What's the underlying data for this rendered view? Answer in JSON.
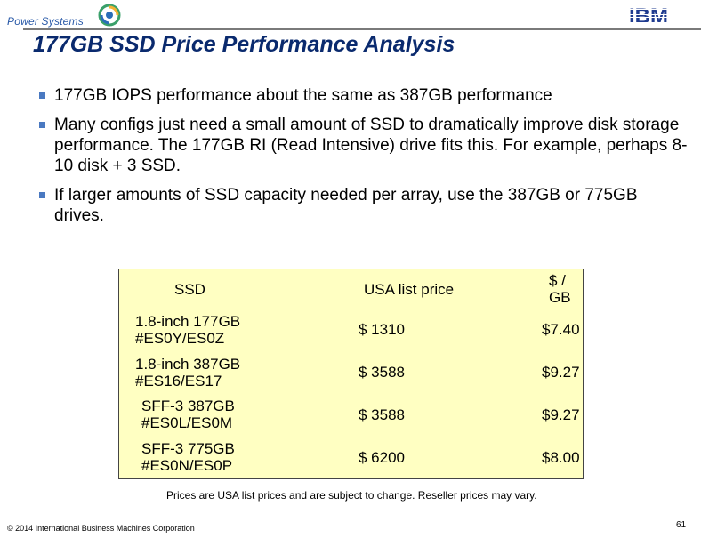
{
  "header": {
    "brand_text": "Power Systems",
    "ibm_logo_text": "IBM"
  },
  "title": "177GB SSD Price Performance Analysis",
  "bullets": [
    "177GB IOPS performance about the same as 387GB performance",
    "Many configs just need a small amount of SSD to dramatically improve disk storage performance.  The 177GB RI (Read Intensive) drive fits this.    For example, perhaps 8-10 disk + 3 SSD.",
    "If larger amounts of SSD capacity needed per array, use the 387GB or 775GB drives."
  ],
  "table": {
    "headers": [
      "SSD",
      "USA list price",
      "$ / GB"
    ],
    "rows": [
      {
        "line1": "1.8-inch 177GB",
        "line2": "#ES0Y/ES0Z",
        "price": "$ 1310",
        "per_gb": "$7.40"
      },
      {
        "line1": "1.8-inch 387GB",
        "line2": "#ES16/ES17",
        "price": "$ 3588",
        "per_gb": "$9.27"
      },
      {
        "line1": "SFF-3 387GB",
        "line2": "#ES0L/ES0M",
        "price": "$ 3588",
        "per_gb": "$9.27"
      },
      {
        "line1": "SFF-3 775GB",
        "line2": "#ES0N/ES0P",
        "price": "$ 6200",
        "per_gb": "$8.00"
      }
    ]
  },
  "note": "Prices are USA list prices and are subject to change.  Reseller prices may vary.",
  "footer": {
    "copyright": "© 2014 International Business Machines Corporation",
    "page_number": "61"
  },
  "colors": {
    "title": "#0a2a6e",
    "bullet_marker": "#4a79c1",
    "table_background": "#ffffc2",
    "brand_text": "#2a5aa8"
  }
}
